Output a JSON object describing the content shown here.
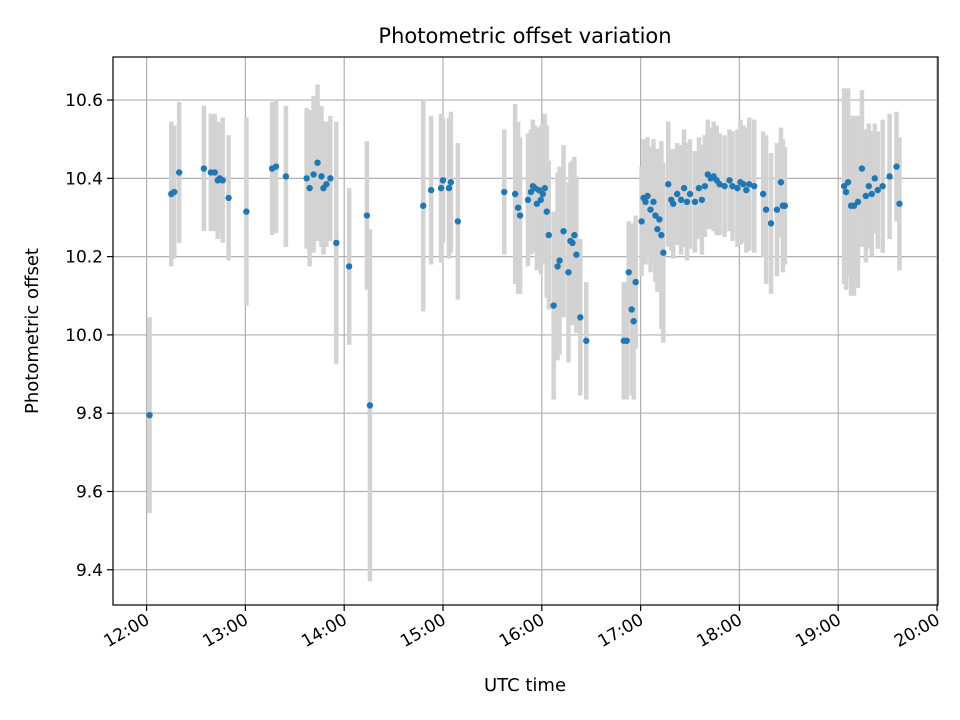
{
  "chart_data": {
    "type": "scatter",
    "title": "Photometric offset variation",
    "xlabel": "UTC time",
    "ylabel": "Photometric offset",
    "xlim": [
      11.66,
      20.01
    ],
    "ylim": [
      9.31,
      10.71
    ],
    "xticks": [
      12,
      13,
      14,
      15,
      16,
      17,
      18,
      19,
      20
    ],
    "xtick_labels": [
      "12:00",
      "13:00",
      "14:00",
      "15:00",
      "16:00",
      "17:00",
      "18:00",
      "19:00",
      "20:00"
    ],
    "yticks": [
      9.4,
      9.6,
      9.8,
      10.0,
      10.2,
      10.4,
      10.6
    ],
    "ytick_labels": [
      "9.4",
      "9.6",
      "9.8",
      "10.0",
      "10.2",
      "10.4",
      "10.6"
    ],
    "grid": true,
    "point_color": "#1f77b4",
    "errorbar_color": "#d3d3d3",
    "series": [
      {
        "name": "offset",
        "x": [
          12.03,
          12.25,
          12.28,
          12.33,
          12.58,
          12.65,
          12.69,
          12.72,
          12.74,
          12.77,
          12.83,
          13.01,
          13.27,
          13.31,
          13.41,
          13.62,
          13.65,
          13.69,
          13.73,
          13.77,
          13.79,
          13.82,
          13.86,
          13.92,
          14.05,
          14.23,
          14.26,
          14.8,
          14.88,
          14.98,
          15.0,
          15.06,
          15.08,
          15.15,
          15.62,
          15.73,
          15.76,
          15.78,
          15.86,
          15.89,
          15.91,
          15.93,
          15.95,
          15.97,
          15.99,
          16.01,
          16.03,
          16.05,
          16.07,
          16.12,
          16.16,
          16.18,
          16.22,
          16.27,
          16.29,
          16.31,
          16.33,
          16.35,
          16.39,
          16.45,
          16.83,
          16.86,
          16.88,
          16.91,
          16.93,
          16.95,
          17.01,
          17.03,
          17.05,
          17.07,
          17.1,
          17.13,
          17.15,
          17.17,
          17.19,
          17.21,
          17.23,
          17.28,
          17.31,
          17.33,
          17.37,
          17.41,
          17.44,
          17.47,
          17.5,
          17.55,
          17.59,
          17.62,
          17.65,
          17.68,
          17.71,
          17.74,
          17.77,
          17.8,
          17.85,
          17.9,
          17.93,
          17.98,
          18.01,
          18.04,
          18.07,
          18.1,
          18.15,
          18.24,
          18.27,
          18.32,
          18.38,
          18.42,
          18.44,
          18.46,
          19.06,
          19.08,
          19.1,
          19.13,
          19.16,
          19.2,
          19.24,
          19.28,
          19.31,
          19.34,
          19.37,
          19.4,
          19.45,
          19.52,
          19.59,
          19.62
        ],
        "y": [
          9.795,
          10.36,
          10.365,
          10.415,
          10.425,
          10.415,
          10.415,
          10.395,
          10.4,
          10.395,
          10.35,
          10.315,
          10.425,
          10.43,
          10.405,
          10.4,
          10.375,
          10.41,
          10.44,
          10.405,
          10.375,
          10.385,
          10.4,
          10.235,
          10.175,
          10.305,
          9.82,
          10.33,
          10.37,
          10.375,
          10.395,
          10.375,
          10.39,
          10.29,
          10.365,
          10.36,
          10.325,
          10.305,
          10.345,
          10.365,
          10.38,
          10.375,
          10.335,
          10.37,
          10.345,
          10.36,
          10.375,
          10.315,
          10.255,
          10.075,
          10.175,
          10.19,
          10.265,
          10.16,
          10.24,
          10.235,
          10.255,
          10.205,
          10.045,
          9.985,
          9.985,
          9.985,
          10.16,
          10.065,
          10.035,
          10.135,
          10.29,
          10.35,
          10.34,
          10.355,
          10.32,
          10.34,
          10.305,
          10.27,
          10.295,
          10.255,
          10.21,
          10.385,
          10.345,
          10.335,
          10.36,
          10.345,
          10.375,
          10.34,
          10.36,
          10.34,
          10.375,
          10.345,
          10.38,
          10.41,
          10.4,
          10.405,
          10.395,
          10.385,
          10.38,
          10.395,
          10.38,
          10.375,
          10.39,
          10.385,
          10.37,
          10.385,
          10.38,
          10.36,
          10.32,
          10.285,
          10.32,
          10.39,
          10.33,
          10.33,
          10.38,
          10.365,
          10.39,
          10.33,
          10.33,
          10.34,
          10.425,
          10.355,
          10.38,
          10.36,
          10.4,
          10.37,
          10.38,
          10.405,
          10.43,
          10.335
        ],
        "yerr": [
          0.25,
          0.185,
          0.17,
          0.18,
          0.16,
          0.15,
          0.15,
          0.15,
          0.14,
          0.16,
          0.16,
          0.24,
          0.17,
          0.17,
          0.18,
          0.18,
          0.2,
          0.2,
          0.2,
          0.18,
          0.17,
          0.16,
          0.16,
          0.31,
          0.2,
          0.19,
          0.45,
          0.27,
          0.19,
          0.19,
          0.16,
          0.18,
          0.18,
          0.2,
          0.16,
          0.23,
          0.22,
          0.2,
          0.17,
          0.16,
          0.17,
          0.16,
          0.17,
          0.16,
          0.19,
          0.18,
          0.19,
          0.22,
          0.19,
          0.24,
          0.24,
          0.24,
          0.22,
          0.23,
          0.2,
          0.21,
          0.2,
          0.2,
          0.2,
          0.15,
          0.15,
          0.15,
          0.13,
          0.22,
          0.2,
          0.17,
          0.14,
          0.15,
          0.16,
          0.15,
          0.16,
          0.16,
          0.17,
          0.16,
          0.18,
          0.24,
          0.23,
          0.16,
          0.13,
          0.14,
          0.13,
          0.14,
          0.15,
          0.15,
          0.14,
          0.13,
          0.13,
          0.14,
          0.13,
          0.14,
          0.13,
          0.14,
          0.14,
          0.13,
          0.13,
          0.13,
          0.14,
          0.15,
          0.16,
          0.15,
          0.16,
          0.17,
          0.17,
          0.16,
          0.19,
          0.18,
          0.17,
          0.14,
          0.17,
          0.15,
          0.25,
          0.25,
          0.24,
          0.23,
          0.23,
          0.22,
          0.2,
          0.17,
          0.16,
          0.16,
          0.14,
          0.15,
          0.17,
          0.16,
          0.14,
          0.17
        ]
      }
    ]
  }
}
